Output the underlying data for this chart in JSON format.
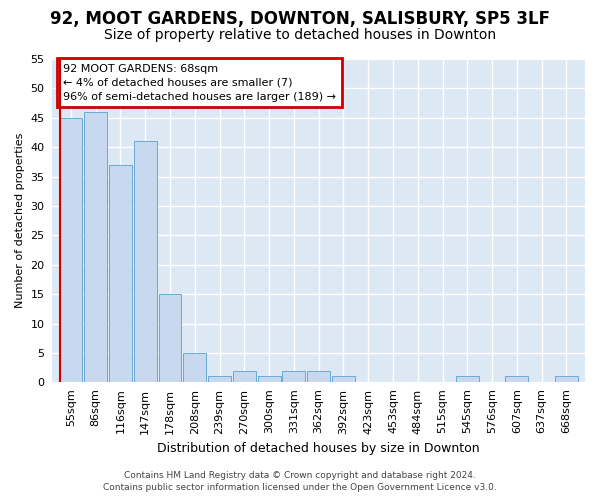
{
  "title1": "92, MOOT GARDENS, DOWNTON, SALISBURY, SP5 3LF",
  "title2": "Size of property relative to detached houses in Downton",
  "xlabel": "Distribution of detached houses by size in Downton",
  "ylabel": "Number of detached properties",
  "categories": [
    "55sqm",
    "86sqm",
    "116sqm",
    "147sqm",
    "178sqm",
    "208sqm",
    "239sqm",
    "270sqm",
    "300sqm",
    "331sqm",
    "362sqm",
    "392sqm",
    "423sqm",
    "453sqm",
    "484sqm",
    "515sqm",
    "545sqm",
    "576sqm",
    "607sqm",
    "637sqm",
    "668sqm"
  ],
  "values": [
    45,
    46,
    37,
    41,
    15,
    5,
    1,
    2,
    1,
    2,
    2,
    1,
    0,
    0,
    0,
    0,
    1,
    0,
    1,
    0,
    1
  ],
  "bar_color": "#c8d8ee",
  "bar_edge_color": "#6aaad4",
  "annotation_text": "92 MOOT GARDENS: 68sqm\n← 4% of detached houses are smaller (7)\n96% of semi-detached houses are larger (189) →",
  "annotation_box_color": "#ffffff",
  "annotation_box_edge_color": "#cc0000",
  "vline_color": "#cc0000",
  "ylim": [
    0,
    55
  ],
  "yticks": [
    0,
    5,
    10,
    15,
    20,
    25,
    30,
    35,
    40,
    45,
    50,
    55
  ],
  "bg_color": "#ffffff",
  "plot_bg_color": "#dde8f5",
  "grid_color": "#ffffff",
  "footer1": "Contains HM Land Registry data © Crown copyright and database right 2024.",
  "footer2": "Contains public sector information licensed under the Open Government Licence v3.0.",
  "title1_fontsize": 12,
  "title2_fontsize": 10,
  "ylabel_fontsize": 8,
  "xlabel_fontsize": 9,
  "tick_fontsize": 8,
  "annot_fontsize": 8,
  "footer_fontsize": 6.5
}
